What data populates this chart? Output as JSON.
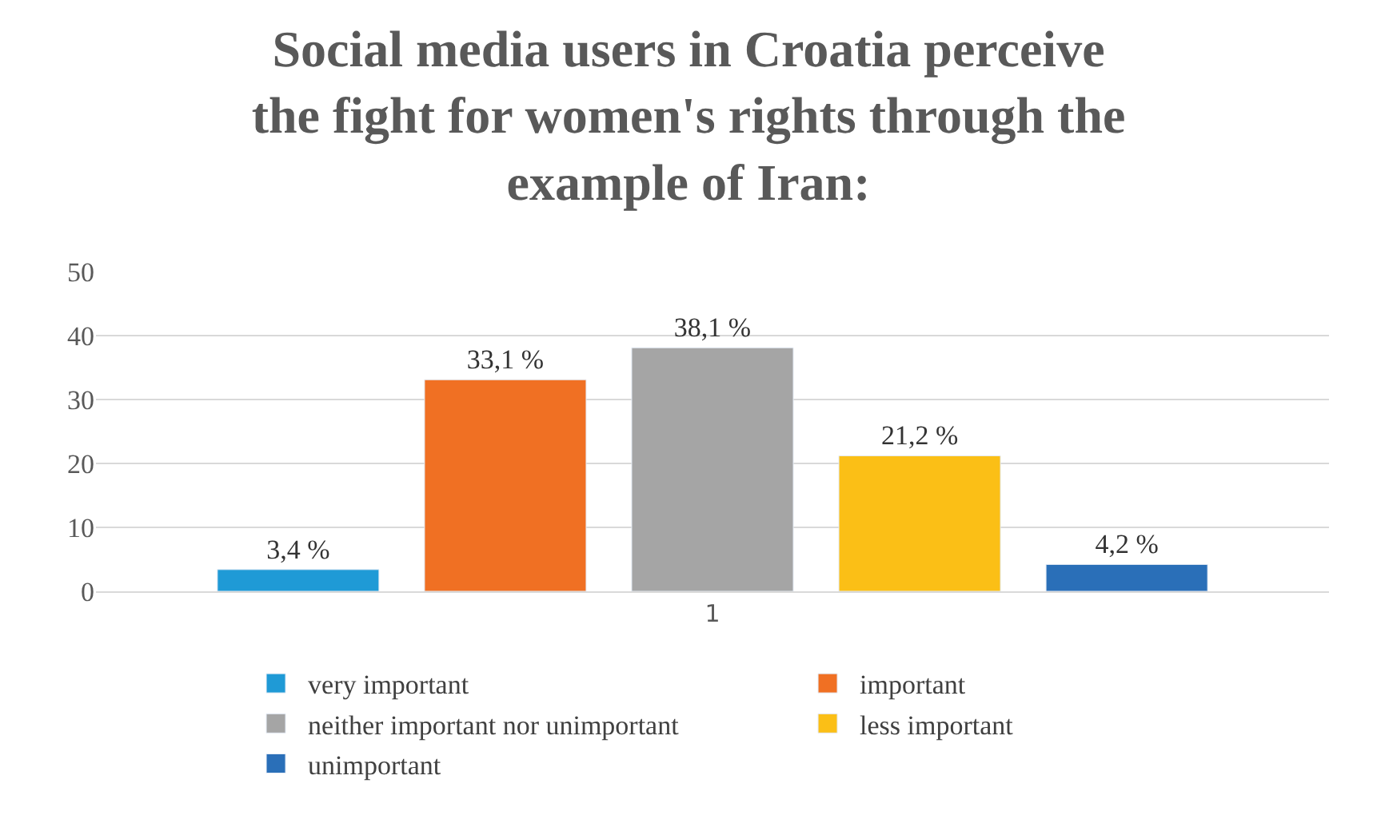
{
  "chart_data": {
    "type": "bar",
    "title": "Social media users in Croatia perceive\nthe fight for women's rights through the\nexample of Iran:",
    "categories": [
      "1"
    ],
    "series": [
      {
        "name": "very important",
        "color": "#1f9ad6",
        "values": [
          3.4
        ],
        "value_labels": [
          "3,4 %"
        ]
      },
      {
        "name": "important",
        "color": "#f07023",
        "values": [
          33.1
        ],
        "value_labels": [
          "33,1 %"
        ]
      },
      {
        "name": "neither important nor unimportant",
        "color": "#a5a5a5",
        "values": [
          38.1
        ],
        "value_labels": [
          "38,1 %"
        ]
      },
      {
        "name": "less important",
        "color": "#fbbf16",
        "values": [
          21.2
        ],
        "value_labels": [
          "21,2 %"
        ]
      },
      {
        "name": "unimportant",
        "color": "#2a6fb8",
        "values": [
          4.2
        ],
        "value_labels": [
          "4,2 %"
        ]
      }
    ],
    "ylim": [
      0,
      50
    ],
    "yticks": [
      0,
      10,
      20,
      30,
      40,
      50
    ],
    "grid": "y",
    "legend": "bottom"
  }
}
